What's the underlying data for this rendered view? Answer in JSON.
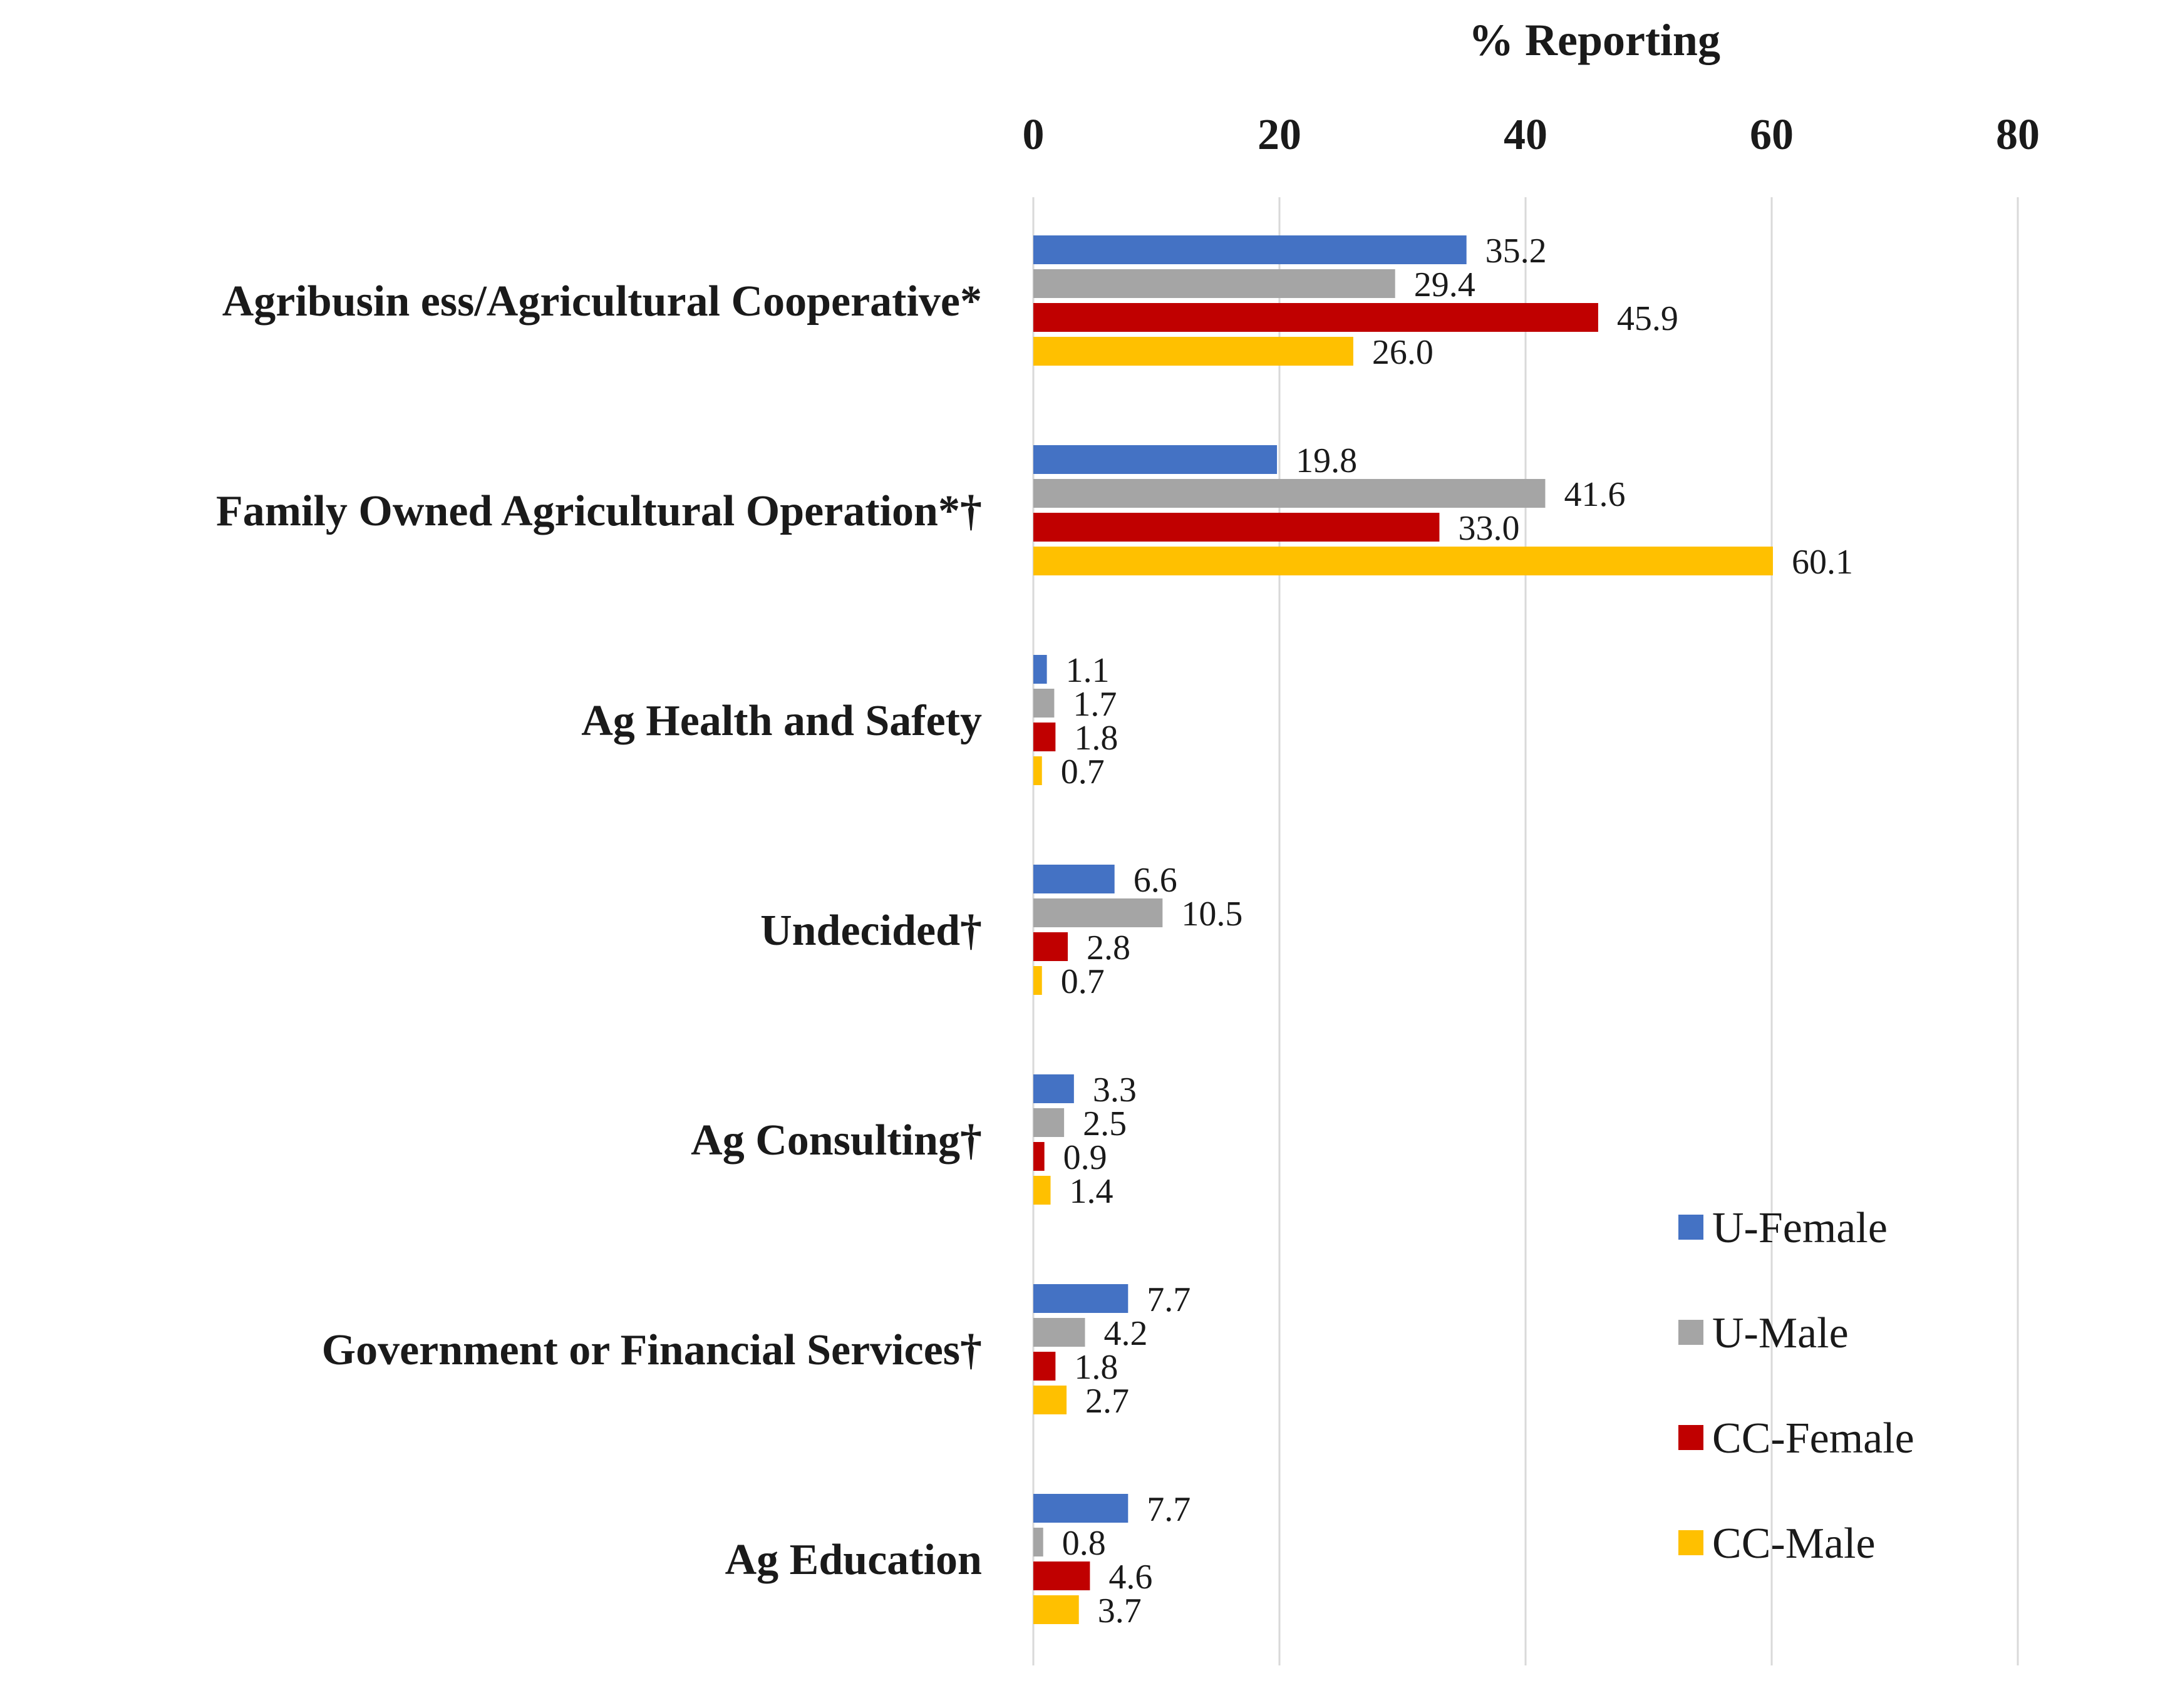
{
  "chart_data": {
    "type": "bar",
    "orientation": "horizontal",
    "title": "",
    "xlabel": "% Reporting",
    "ylabel": "",
    "xlim": [
      0,
      80
    ],
    "xticks": [
      0,
      20,
      40,
      60,
      80
    ],
    "xaxis_position": "top",
    "grid": true,
    "legend_position": "bottom-right",
    "categories": [
      "Agribusin ess/Agricultural Cooperative*",
      "Family  Owned Agricultural  Operation*†",
      "Ag Health and Safety",
      "Undecided†",
      "Ag Consulting†",
      "Government  or Financial  Services†",
      "Ag Education"
    ],
    "series": [
      {
        "name": "U-Female",
        "color": "#4472c4",
        "values": [
          35.2,
          19.8,
          1.1,
          6.6,
          3.3,
          7.7,
          7.7
        ],
        "labels": [
          "35.2",
          "19.8",
          "1.1",
          "6.6",
          "3.3",
          "7.7",
          "7.7"
        ]
      },
      {
        "name": "U-Male",
        "color": "#a5a5a5",
        "values": [
          29.4,
          41.6,
          1.7,
          10.5,
          2.5,
          4.2,
          0.8
        ],
        "labels": [
          "29.4",
          "41.6",
          "1.7",
          "10.5",
          "2.5",
          "4.2",
          "0.8"
        ]
      },
      {
        "name": "CC-Female",
        "color": "#c00000",
        "values": [
          45.9,
          33.0,
          1.8,
          2.8,
          0.9,
          1.8,
          4.6
        ],
        "labels": [
          "45.9",
          "33.0",
          "1.8",
          "2.8",
          "0.9",
          "1.8",
          "4.6"
        ]
      },
      {
        "name": "CC-Male",
        "color": "#ffc000",
        "values": [
          26.0,
          60.1,
          0.7,
          0.7,
          1.4,
          2.7,
          3.7
        ],
        "labels": [
          "26.0",
          "60.1",
          "0.7",
          "0.7",
          "1.4",
          "2.7",
          "3.7"
        ]
      }
    ]
  }
}
